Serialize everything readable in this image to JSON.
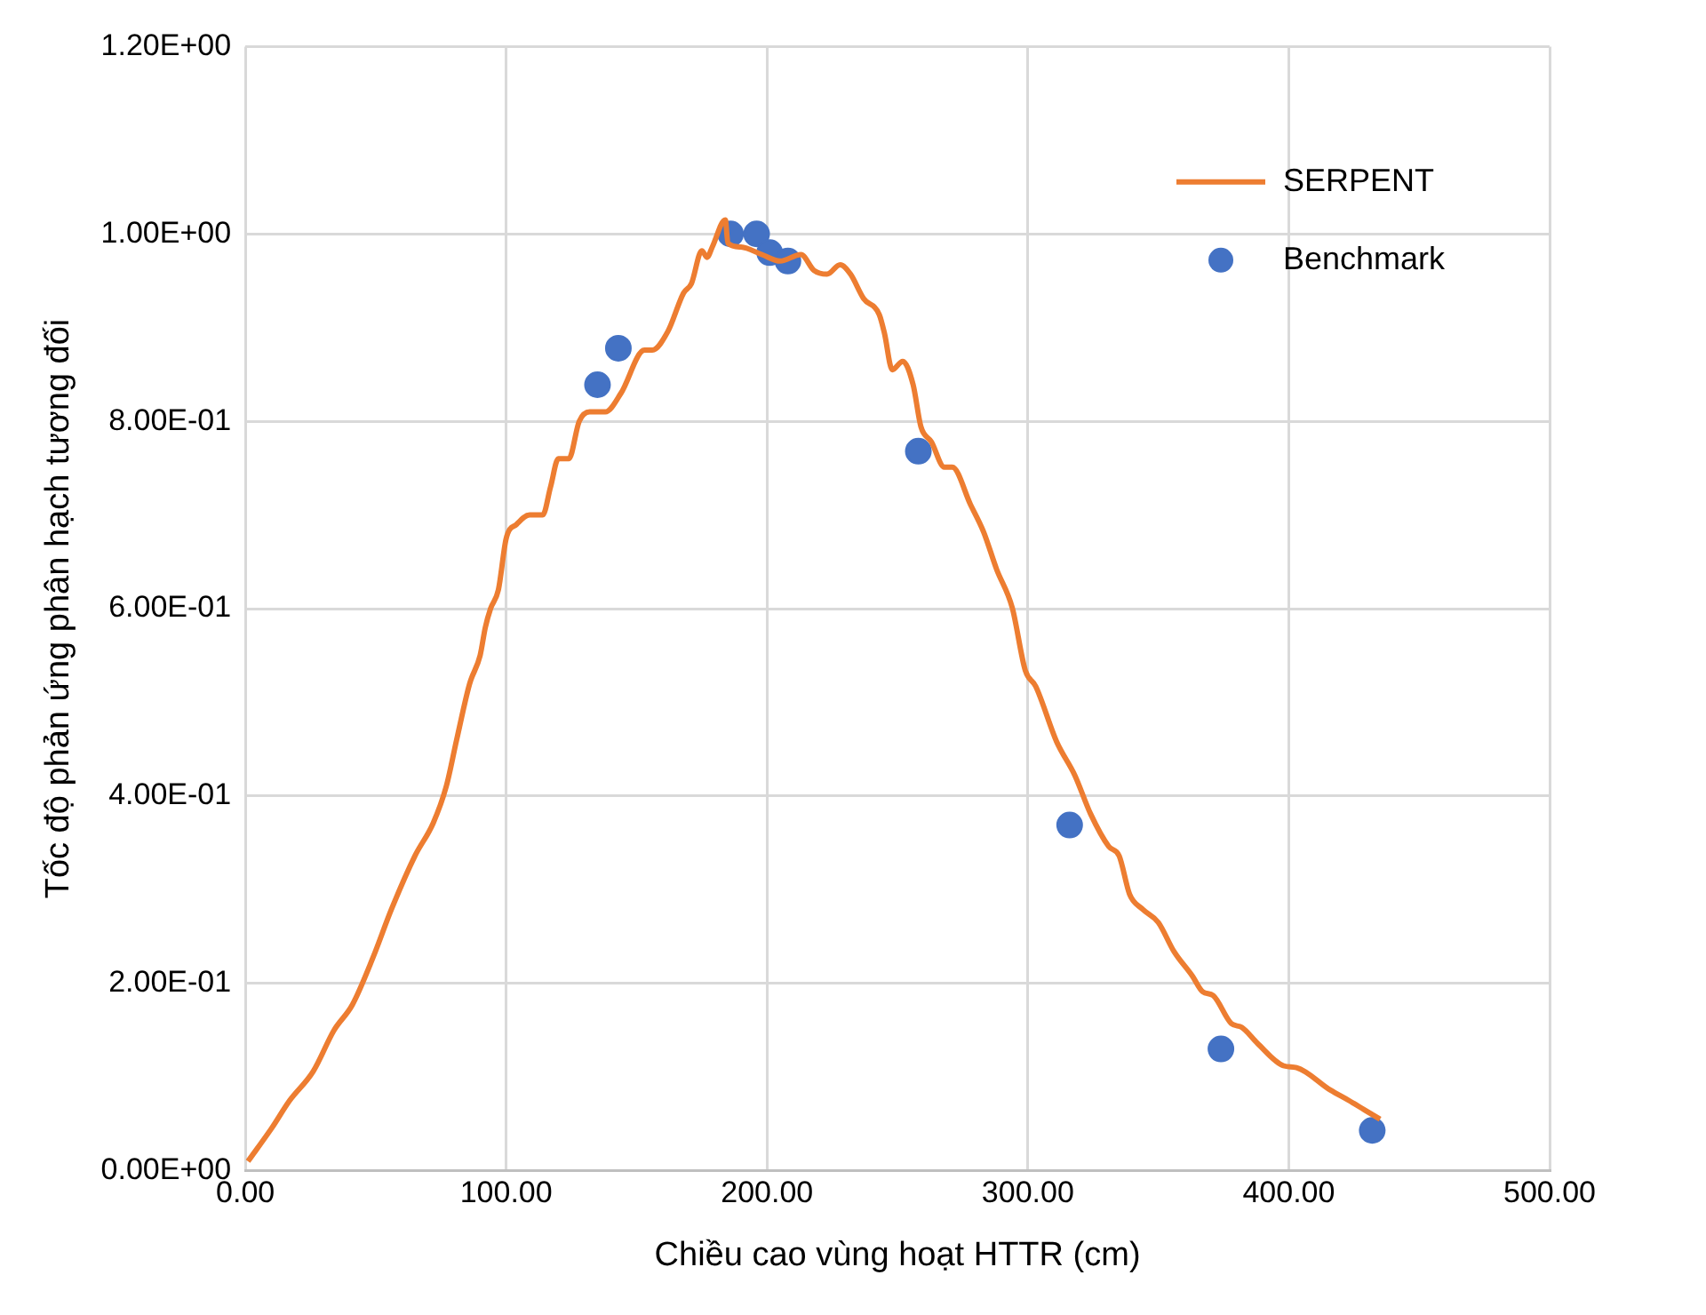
{
  "chart_data": {
    "type": "line",
    "xlabel": "Chiều cao vùng hoạt HTTR (cm)",
    "ylabel": "Tốc độ phản ứng phân hạch tương đối",
    "xlim": [
      0,
      500
    ],
    "xticks": [
      {
        "value": 0,
        "label": "0.00"
      },
      {
        "value": 100,
        "label": "100.00"
      },
      {
        "value": 200,
        "label": "200.00"
      },
      {
        "value": 300,
        "label": "300.00"
      },
      {
        "value": 400,
        "label": "400.00"
      },
      {
        "value": 500,
        "label": "500.00"
      }
    ],
    "ylim": [
      0,
      1.2
    ],
    "yticks": [
      {
        "value": 0,
        "label": "0.00E+00"
      },
      {
        "value": 0.2,
        "label": "2.00E-01"
      },
      {
        "value": 0.4,
        "label": "4.00E-01"
      },
      {
        "value": 0.6,
        "label": "6.00E-01"
      },
      {
        "value": 0.8,
        "label": "8.00E-01"
      },
      {
        "value": 1.0,
        "label": "1.00E+00"
      },
      {
        "value": 1.2,
        "label": "1.20E+00"
      }
    ],
    "grid": true,
    "legend": "top right",
    "series": [
      {
        "name": "SERPENT",
        "type": "line",
        "marker": "none",
        "line_style": "solid",
        "color": "#ed7d31",
        "x": [
          1,
          10,
          17,
          26,
          34,
          41,
          49,
          56,
          65,
          72,
          77,
          81,
          86,
          90,
          92,
          94,
          97,
          100,
          104,
          109,
          114,
          117,
          120,
          124,
          128,
          132,
          138,
          144,
          153,
          156,
          162,
          168,
          171,
          175,
          177,
          179,
          184,
          185,
          190,
          198,
          205,
          213,
          218,
          223,
          228,
          232,
          237,
          243,
          245,
          248,
          252,
          256,
          259,
          263,
          268,
          271,
          278,
          283,
          288,
          294,
          299,
          303,
          311,
          318,
          324,
          331,
          335,
          339,
          344,
          350,
          356,
          363,
          367,
          371,
          378,
          382,
          388,
          398,
          403,
          416,
          423,
          429,
          435
        ],
        "values": [
          0.01,
          0.045,
          0.075,
          0.106,
          0.15,
          0.177,
          0.228,
          0.279,
          0.336,
          0.371,
          0.41,
          0.46,
          0.52,
          0.55,
          0.58,
          0.6,
          0.62,
          0.675,
          0.69,
          0.7,
          0.7,
          0.73,
          0.76,
          0.76,
          0.8,
          0.81,
          0.81,
          0.83,
          0.876,
          0.876,
          0.896,
          0.937,
          0.947,
          0.982,
          0.975,
          0.986,
          1.015,
          0.99,
          0.986,
          0.978,
          0.971,
          0.978,
          0.961,
          0.957,
          0.967,
          0.957,
          0.931,
          0.914,
          0.894,
          0.855,
          0.864,
          0.839,
          0.794,
          0.778,
          0.751,
          0.751,
          0.711,
          0.682,
          0.642,
          0.601,
          0.534,
          0.517,
          0.458,
          0.422,
          0.381,
          0.346,
          0.336,
          0.295,
          0.279,
          0.265,
          0.234,
          0.208,
          0.191,
          0.187,
          0.157,
          0.153,
          0.136,
          0.112,
          0.11,
          0.086,
          0.075,
          0.065,
          0.055
        ]
      },
      {
        "name": "Benchmark",
        "type": "scatter",
        "marker": "circle",
        "color": "#4472c4",
        "x": [
          135,
          143,
          186,
          196,
          201,
          208,
          258,
          316,
          374,
          432
        ],
        "values": [
          0.839,
          0.878,
          1.0,
          1.0,
          0.98,
          0.971,
          0.768,
          0.369,
          0.13,
          0.043
        ]
      }
    ]
  }
}
